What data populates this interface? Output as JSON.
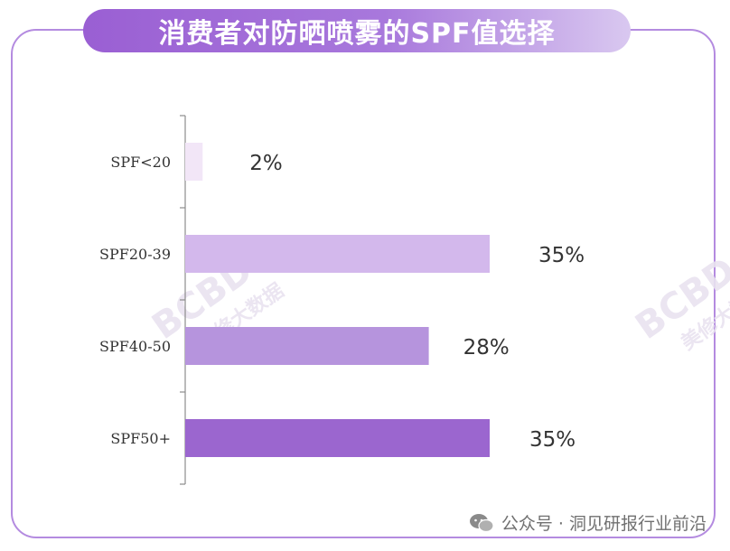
{
  "title": "消费者对防晒喷雾的SPF值选择",
  "watermark": {
    "logo": "BCBD",
    "text": "美修大数据"
  },
  "footer": {
    "text": "公众号 · 洞见研报行业前沿"
  },
  "chart_data": {
    "type": "bar",
    "orientation": "horizontal",
    "categories": [
      "SPF<20",
      "SPF20-39",
      "SPF40-50",
      "SPF50+"
    ],
    "values": [
      2,
      35,
      28,
      35
    ],
    "value_labels": [
      "2%",
      "35%",
      "28%",
      "35%"
    ],
    "colors": [
      "#f2e6f7",
      "#d3b8ec",
      "#b694dd",
      "#9b66cf"
    ],
    "xlim": [
      0,
      35
    ],
    "grid": false,
    "title": "消费者对防晒喷雾的SPF值选择"
  }
}
